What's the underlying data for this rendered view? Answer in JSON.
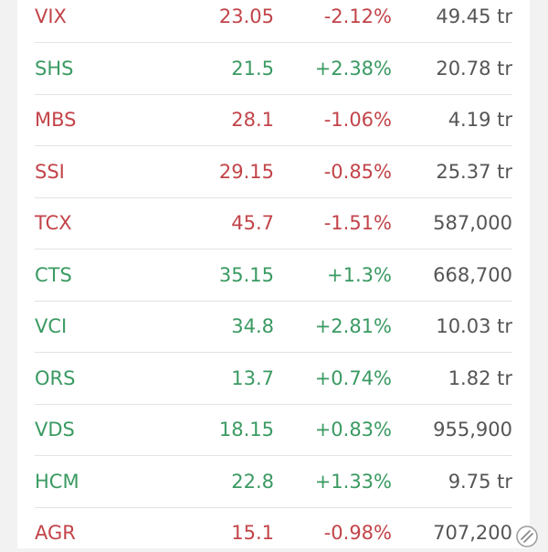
{
  "colors": {
    "up": "#3a9a62",
    "down": "#c24449",
    "volume": "#555555",
    "background": "#f2f2f2",
    "card": "#ffffff",
    "divider": "#e3e3e3"
  },
  "stocks": [
    {
      "symbol": "VIX",
      "price": "23.05",
      "change": "-2.12%",
      "volume": "49.45 tr",
      "direction": "down"
    },
    {
      "symbol": "SHS",
      "price": "21.5",
      "change": "+2.38%",
      "volume": "20.78 tr",
      "direction": "up"
    },
    {
      "symbol": "MBS",
      "price": "28.1",
      "change": "-1.06%",
      "volume": "4.19 tr",
      "direction": "down"
    },
    {
      "symbol": "SSI",
      "price": "29.15",
      "change": "-0.85%",
      "volume": "25.37 tr",
      "direction": "down"
    },
    {
      "symbol": "TCX",
      "price": "45.7",
      "change": "-1.51%",
      "volume": "587,000",
      "direction": "down"
    },
    {
      "symbol": "CTS",
      "price": "35.15",
      "change": "+1.3%",
      "volume": "668,700",
      "direction": "up"
    },
    {
      "symbol": "VCI",
      "price": "34.8",
      "change": "+2.81%",
      "volume": "10.03 tr",
      "direction": "up"
    },
    {
      "symbol": "ORS",
      "price": "13.7",
      "change": "+0.74%",
      "volume": "1.82 tr",
      "direction": "up"
    },
    {
      "symbol": "VDS",
      "price": "18.15",
      "change": "+0.83%",
      "volume": "955,900",
      "direction": "up"
    },
    {
      "symbol": "HCM",
      "price": "22.8",
      "change": "+1.33%",
      "volume": "9.75 tr",
      "direction": "up"
    },
    {
      "symbol": "AGR",
      "price": "15.1",
      "change": "-0.98%",
      "volume": "707,200",
      "direction": "down"
    }
  ],
  "icons": {
    "scroll_handle": "scroll-handle-icon"
  }
}
